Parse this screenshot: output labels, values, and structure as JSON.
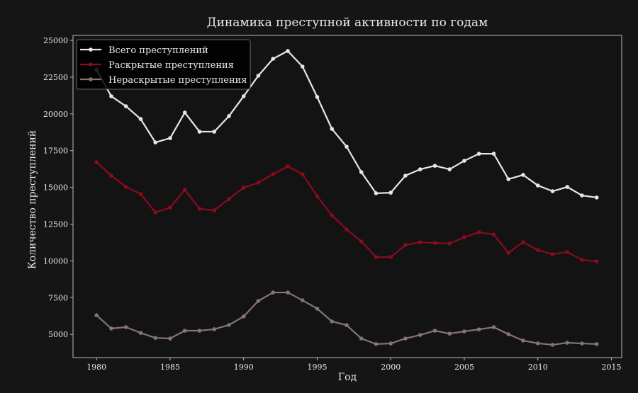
{
  "chart_data": {
    "type": "line",
    "title": "Динамика преступной активности по годам",
    "xlabel": "Год",
    "ylabel": "Количество преступлений",
    "xlim": [
      1978.4,
      2015.7
    ],
    "ylim": [
      3420,
      25340
    ],
    "xticks": [
      1980,
      1985,
      1990,
      1995,
      2000,
      2005,
      2010,
      2015
    ],
    "yticks": [
      5000,
      7500,
      10000,
      12500,
      15000,
      17500,
      20000,
      22500,
      25000
    ],
    "grid": false,
    "legend_position": "top-left",
    "x": [
      1980,
      1981,
      1982,
      1983,
      1984,
      1985,
      1986,
      1987,
      1988,
      1989,
      1990,
      1991,
      1992,
      1993,
      1994,
      1995,
      1996,
      1997,
      1998,
      1999,
      2000,
      2001,
      2002,
      2003,
      2004,
      2005,
      2006,
      2007,
      2008,
      2009,
      2010,
      2011,
      2012,
      2013,
      2014
    ],
    "series": [
      {
        "name": "Всего преступлений",
        "color": "#e6e6e6",
        "values": [
          23000,
          21200,
          20520,
          19650,
          18060,
          18350,
          20090,
          18790,
          18790,
          19850,
          21200,
          22600,
          23750,
          24280,
          23220,
          21150,
          18980,
          17770,
          16040,
          14600,
          14640,
          15800,
          16230,
          16470,
          16230,
          16810,
          17290,
          17290,
          15560,
          15850,
          15130,
          14740,
          15030,
          14450,
          14310
        ]
      },
      {
        "name": "Раскрытые преступления",
        "color": "#8b0a1e",
        "values": [
          16710,
          15800,
          15030,
          14550,
          13300,
          13630,
          14840,
          13540,
          13440,
          14210,
          14980,
          15320,
          15900,
          16430,
          15900,
          14400,
          13100,
          12140,
          11320,
          10260,
          10260,
          11080,
          11270,
          11220,
          11180,
          11610,
          11950,
          11800,
          10550,
          11270,
          10740,
          10450,
          10600,
          10070,
          9970
        ]
      },
      {
        "name": "Нераскрытые преступления",
        "color": "#857474",
        "values": [
          6300,
          5400,
          5490,
          5100,
          4760,
          4720,
          5250,
          5250,
          5350,
          5640,
          6220,
          7280,
          7850,
          7850,
          7320,
          6750,
          5880,
          5630,
          4720,
          4340,
          4380,
          4720,
          4960,
          5250,
          5050,
          5200,
          5340,
          5490,
          5010,
          4580,
          4390,
          4290,
          4430,
          4380,
          4340
        ]
      }
    ]
  }
}
